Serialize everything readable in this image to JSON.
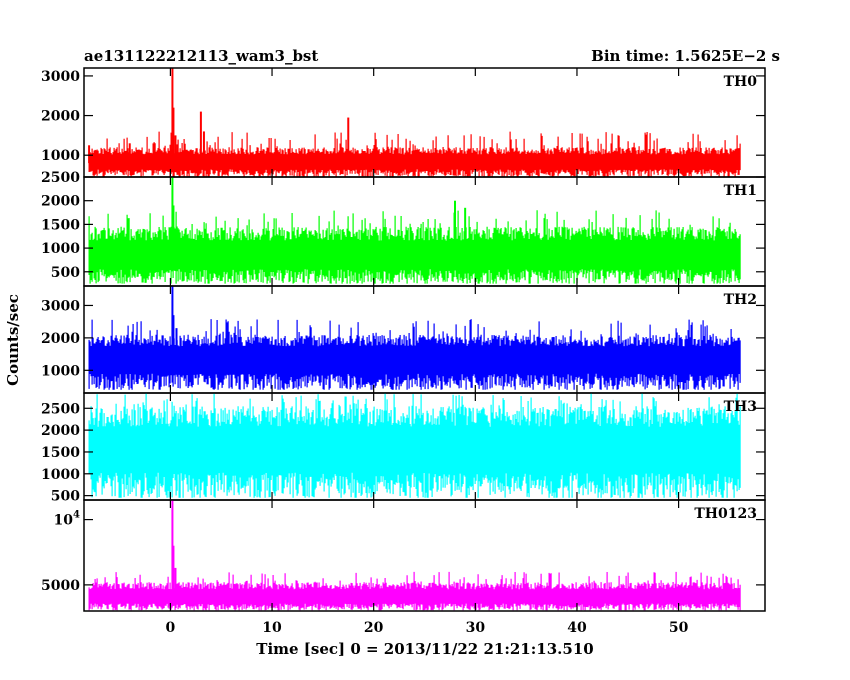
{
  "chart_data": {
    "type": "line",
    "header_left": "ae131122212113_wam3_bst",
    "header_right": "Bin time: 1.5625E−2 s",
    "xlabel": "Time [sec] 0 = 2013/11/22 21:21:13.510",
    "ylabel": "Counts/sec",
    "xlim": [
      -8.5,
      58.5
    ],
    "x_ticks": [
      0,
      10,
      20,
      30,
      40,
      50
    ],
    "data_x_range": [
      -8,
      56
    ],
    "bin_time": 0.015625,
    "panels": [
      {
        "name": "TH0",
        "color": "#ff0000",
        "ylim": [
          450,
          3200
        ],
        "y_ticks": [
          {
            "v": 1000,
            "t": "1000"
          },
          {
            "v": 2000,
            "t": "2000"
          },
          {
            "v": 3000,
            "t": "3000"
          }
        ],
        "baseline": 800,
        "band_low": 450,
        "band_high": 1200,
        "spike_high": 1600,
        "spikes": [
          [
            -8.0,
            1250
          ],
          [
            -4.0,
            1300
          ],
          [
            0.2,
            3200
          ],
          [
            0.3,
            2200
          ],
          [
            0.5,
            1500
          ],
          [
            3.0,
            2100
          ],
          [
            3.3,
            1600
          ],
          [
            17.5,
            1950
          ]
        ]
      },
      {
        "name": "TH1",
        "color": "#00ff00",
        "ylim": [
          200,
          2500
        ],
        "y_ticks": [
          {
            "v": 500,
            "t": "500"
          },
          {
            "v": 1000,
            "t": "1000"
          },
          {
            "v": 1500,
            "t": "1500"
          },
          {
            "v": 2000,
            "t": "2000"
          },
          {
            "v": 2500,
            "t": "2500"
          }
        ],
        "baseline": 800,
        "band_low": 250,
        "band_high": 1450,
        "spike_high": 1800,
        "spikes": [
          [
            0.2,
            2500
          ],
          [
            0.3,
            1900
          ],
          [
            28.0,
            2000
          ],
          [
            29.0,
            1850
          ]
        ]
      },
      {
        "name": "TH2",
        "color": "#0000ff",
        "ylim": [
          300,
          3600
        ],
        "y_ticks": [
          {
            "v": 1000,
            "t": "1000"
          },
          {
            "v": 2000,
            "t": "2000"
          },
          {
            "v": 3000,
            "t": "3000"
          }
        ],
        "baseline": 1300,
        "band_low": 400,
        "band_high": 2100,
        "spike_high": 2600,
        "spikes": [
          [
            0.2,
            3600
          ],
          [
            0.3,
            2700
          ],
          [
            0.6,
            2300
          ]
        ]
      },
      {
        "name": "TH3",
        "color": "#00ffff",
        "ylim": [
          400,
          2850
        ],
        "y_ticks": [
          {
            "v": 500,
            "t": "500"
          },
          {
            "v": 1000,
            "t": "1000"
          },
          {
            "v": 1500,
            "t": "1500"
          },
          {
            "v": 2000,
            "t": "2000"
          },
          {
            "v": 2500,
            "t": "2500"
          }
        ],
        "baseline": 1500,
        "band_low": 450,
        "band_high": 2550,
        "spike_high": 2850,
        "spikes": []
      },
      {
        "name": "TH0123",
        "color": "#ff00ff",
        "ylim": [
          3000,
          11500
        ],
        "y_ticks": [
          {
            "v": 5000,
            "t": "5000"
          }
        ],
        "y_tick_sup": {
          "v": 10000,
          "base": "10",
          "exp": "4"
        },
        "baseline": 4000,
        "band_low": 3050,
        "band_high": 5200,
        "spike_high": 6000,
        "spikes": [
          [
            0.2,
            11500
          ],
          [
            0.3,
            8000
          ],
          [
            0.5,
            6300
          ]
        ]
      }
    ]
  }
}
